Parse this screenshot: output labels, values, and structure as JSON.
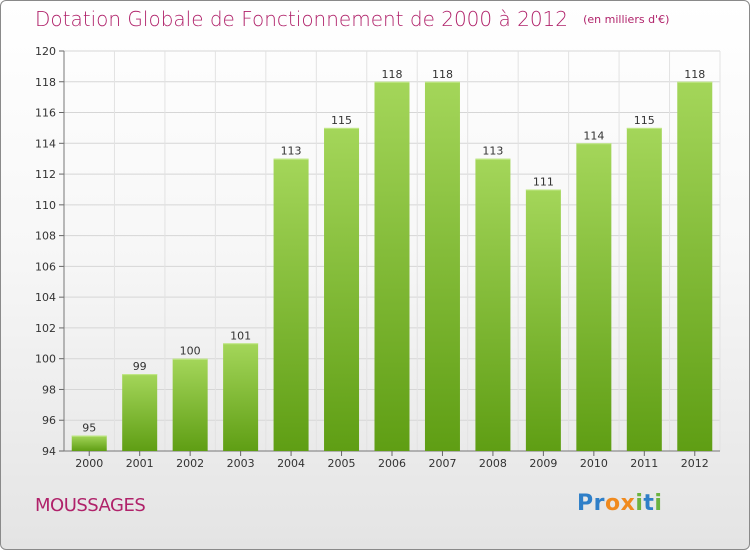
{
  "header": {
    "title": "Dotation Globale de Fonctionnement de 2000 à 2012",
    "subtitle": "(en milliers d'€)"
  },
  "footer": {
    "location": "MOUSSAGES",
    "logo_text": "Proxiti"
  },
  "colors": {
    "title": "#b0226a",
    "bar_light": "#a4d65a",
    "bar_dark": "#5f9e14",
    "logo_blue": "#2f7fc8",
    "logo_orange": "#f08a1e",
    "logo_green": "#6cb33f"
  },
  "chart_data": {
    "type": "bar",
    "title": "Dotation Globale de Fonctionnement de 2000 à 2012",
    "subtitle": "(en milliers d'€)",
    "categories": [
      "2000",
      "2001",
      "2002",
      "2003",
      "2004",
      "2005",
      "2006",
      "2007",
      "2008",
      "2009",
      "2010",
      "2011",
      "2012"
    ],
    "values": [
      95,
      99,
      100,
      101,
      113,
      115,
      118,
      118,
      113,
      111,
      114,
      115,
      118
    ],
    "ylim": [
      94,
      120
    ],
    "yticks": [
      94,
      96,
      98,
      100,
      102,
      104,
      106,
      108,
      110,
      112,
      114,
      116,
      118,
      120
    ],
    "grid": true,
    "legend": "none"
  }
}
